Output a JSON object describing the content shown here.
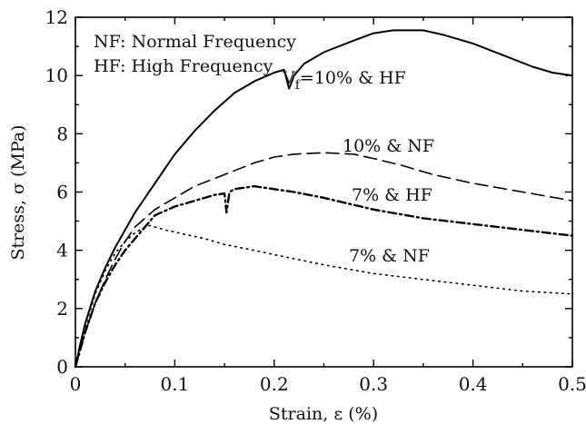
{
  "chart_data": {
    "type": "line",
    "xlabel": "Strain, ε (%)",
    "ylabel": "Stress, σ (MPa)",
    "xlim": [
      0,
      0.5
    ],
    "ylim": [
      0,
      12
    ],
    "xticks": [
      0,
      0.1,
      0.2,
      0.3,
      0.4,
      0.5
    ],
    "yticks": [
      0,
      2,
      4,
      6,
      8,
      10,
      12
    ],
    "xtick_labels": [
      "0",
      "0.1",
      "0.2",
      "0.3",
      "0.4",
      "0.5"
    ],
    "ytick_labels": [
      "0",
      "2",
      "4",
      "6",
      "8",
      "10",
      "12"
    ],
    "grid": false,
    "legend_lines": [
      "NF: Normal Frequency",
      "HF: High Frequency"
    ],
    "legend_placement": "top-left",
    "series": [
      {
        "name": "Vf=10% & HF",
        "style": "solid",
        "x": [
          0,
          0.005,
          0.01,
          0.02,
          0.03,
          0.04,
          0.05,
          0.06,
          0.07,
          0.08,
          0.1,
          0.12,
          0.14,
          0.16,
          0.18,
          0.2,
          0.21,
          0.215,
          0.22,
          0.23,
          0.25,
          0.28,
          0.3,
          0.32,
          0.35,
          0.37,
          0.4,
          0.43,
          0.46,
          0.48,
          0.5
        ],
        "y": [
          0,
          0.8,
          1.5,
          2.6,
          3.4,
          4.1,
          4.7,
          5.3,
          5.8,
          6.3,
          7.3,
          8.1,
          8.8,
          9.4,
          9.8,
          10.1,
          10.2,
          9.55,
          10.0,
          10.4,
          10.8,
          11.2,
          11.45,
          11.55,
          11.55,
          11.4,
          11.1,
          10.7,
          10.3,
          10.1,
          10.0
        ]
      },
      {
        "name": "10% & NF",
        "style": "dashed",
        "x": [
          0,
          0.01,
          0.02,
          0.03,
          0.04,
          0.05,
          0.06,
          0.07,
          0.08,
          0.1,
          0.12,
          0.15,
          0.18,
          0.2,
          0.22,
          0.25,
          0.28,
          0.3,
          0.33,
          0.36,
          0.4,
          0.45,
          0.5
        ],
        "y": [
          0,
          1.2,
          2.2,
          3.0,
          3.7,
          4.3,
          4.8,
          5.1,
          5.4,
          5.8,
          6.2,
          6.6,
          7.0,
          7.2,
          7.3,
          7.35,
          7.3,
          7.15,
          6.9,
          6.6,
          6.3,
          6.0,
          5.7
        ]
      },
      {
        "name": "7% & HF",
        "style": "dash-dot",
        "x": [
          0,
          0.01,
          0.02,
          0.03,
          0.04,
          0.05,
          0.06,
          0.07,
          0.08,
          0.1,
          0.12,
          0.14,
          0.15,
          0.152,
          0.155,
          0.16,
          0.18,
          0.2,
          0.22,
          0.25,
          0.3,
          0.35,
          0.4,
          0.45,
          0.5
        ],
        "y": [
          0,
          1.2,
          2.2,
          2.9,
          3.5,
          4.0,
          4.4,
          4.8,
          5.2,
          5.5,
          5.7,
          5.9,
          5.95,
          5.3,
          6.0,
          6.1,
          6.2,
          6.1,
          6.0,
          5.8,
          5.4,
          5.1,
          4.9,
          4.7,
          4.5
        ]
      },
      {
        "name": "7% & NF",
        "style": "dotted",
        "x": [
          0,
          0.01,
          0.02,
          0.03,
          0.04,
          0.05,
          0.06,
          0.07,
          0.075,
          0.09,
          0.11,
          0.13,
          0.15,
          0.18,
          0.2,
          0.25,
          0.3,
          0.35,
          0.4,
          0.45,
          0.5
        ],
        "y": [
          0,
          1.4,
          2.5,
          3.3,
          3.9,
          4.3,
          4.6,
          4.8,
          4.85,
          4.7,
          4.55,
          4.4,
          4.2,
          4.0,
          3.85,
          3.5,
          3.2,
          3.0,
          2.8,
          2.6,
          2.5
        ]
      }
    ]
  },
  "annotations": {
    "vf_prefix": "V",
    "vf_sub": "f",
    "vf_rest": "=10% & HF",
    "s2": "10% & NF",
    "s3": "7% & HF",
    "s4": "7% & NF"
  }
}
